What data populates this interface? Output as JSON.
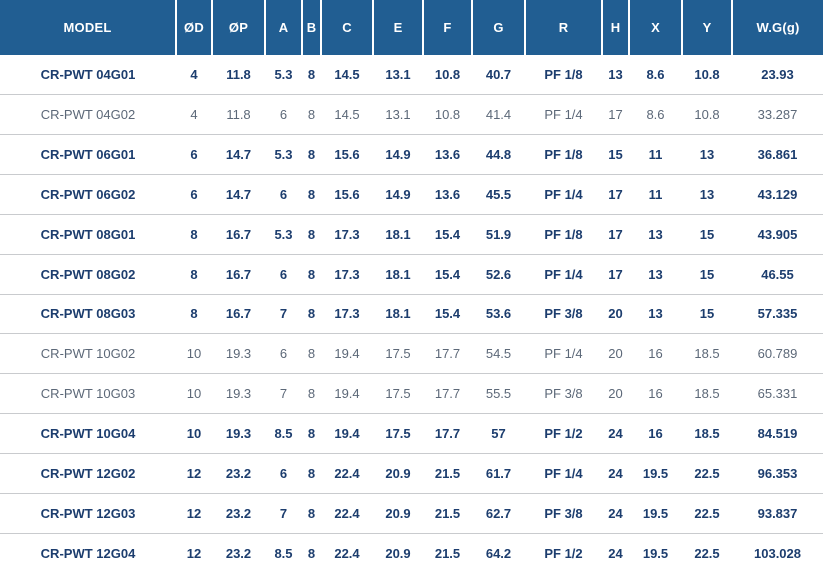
{
  "colors": {
    "header_bg": "#215e92",
    "header_text": "#ffffff",
    "row_emphasis_text": "#1c3d6e",
    "row_normal_text": "#5c6878",
    "row_border": "#c9cbce",
    "row_bg": "#ffffff"
  },
  "chart_data": {
    "type": "table",
    "title": "",
    "columns": [
      "MODEL",
      "ØD",
      "ØP",
      "A",
      "B",
      "C",
      "E",
      "F",
      "G",
      "R",
      "H",
      "X",
      "Y",
      "W.G(g)"
    ],
    "rows": [
      {
        "emphasized": true,
        "cells": [
          "CR-PWT 04G01",
          "4",
          "11.8",
          "5.3",
          "8",
          "14.5",
          "13.1",
          "10.8",
          "40.7",
          "PF 1/8",
          "13",
          "8.6",
          "10.8",
          "23.93"
        ]
      },
      {
        "emphasized": false,
        "cells": [
          "CR-PWT 04G02",
          "4",
          "11.8",
          "6",
          "8",
          "14.5",
          "13.1",
          "10.8",
          "41.4",
          "PF 1/4",
          "17",
          "8.6",
          "10.8",
          "33.287"
        ]
      },
      {
        "emphasized": true,
        "cells": [
          "CR-PWT 06G01",
          "6",
          "14.7",
          "5.3",
          "8",
          "15.6",
          "14.9",
          "13.6",
          "44.8",
          "PF 1/8",
          "15",
          "11",
          "13",
          "36.861"
        ]
      },
      {
        "emphasized": true,
        "cells": [
          "CR-PWT 06G02",
          "6",
          "14.7",
          "6",
          "8",
          "15.6",
          "14.9",
          "13.6",
          "45.5",
          "PF 1/4",
          "17",
          "11",
          "13",
          "43.129"
        ]
      },
      {
        "emphasized": true,
        "cells": [
          "CR-PWT 08G01",
          "8",
          "16.7",
          "5.3",
          "8",
          "17.3",
          "18.1",
          "15.4",
          "51.9",
          "PF 1/8",
          "17",
          "13",
          "15",
          "43.905"
        ]
      },
      {
        "emphasized": true,
        "cells": [
          "CR-PWT 08G02",
          "8",
          "16.7",
          "6",
          "8",
          "17.3",
          "18.1",
          "15.4",
          "52.6",
          "PF 1/4",
          "17",
          "13",
          "15",
          "46.55"
        ]
      },
      {
        "emphasized": true,
        "cells": [
          "CR-PWT 08G03",
          "8",
          "16.7",
          "7",
          "8",
          "17.3",
          "18.1",
          "15.4",
          "53.6",
          "PF 3/8",
          "20",
          "13",
          "15",
          "57.335"
        ]
      },
      {
        "emphasized": false,
        "cells": [
          "CR-PWT 10G02",
          "10",
          "19.3",
          "6",
          "8",
          "19.4",
          "17.5",
          "17.7",
          "54.5",
          "PF 1/4",
          "20",
          "16",
          "18.5",
          "60.789"
        ]
      },
      {
        "emphasized": false,
        "cells": [
          "CR-PWT 10G03",
          "10",
          "19.3",
          "7",
          "8",
          "19.4",
          "17.5",
          "17.7",
          "55.5",
          "PF 3/8",
          "20",
          "16",
          "18.5",
          "65.331"
        ]
      },
      {
        "emphasized": true,
        "cells": [
          "CR-PWT 10G04",
          "10",
          "19.3",
          "8.5",
          "8",
          "19.4",
          "17.5",
          "17.7",
          "57",
          "PF 1/2",
          "24",
          "16",
          "18.5",
          "84.519"
        ]
      },
      {
        "emphasized": true,
        "cells": [
          "CR-PWT 12G02",
          "12",
          "23.2",
          "6",
          "8",
          "22.4",
          "20.9",
          "21.5",
          "61.7",
          "PF 1/4",
          "24",
          "19.5",
          "22.5",
          "96.353"
        ]
      },
      {
        "emphasized": true,
        "cells": [
          "CR-PWT 12G03",
          "12",
          "23.2",
          "7",
          "8",
          "22.4",
          "20.9",
          "21.5",
          "62.7",
          "PF 3/8",
          "24",
          "19.5",
          "22.5",
          "93.837"
        ]
      },
      {
        "emphasized": true,
        "cells": [
          "CR-PWT 12G04",
          "12",
          "23.2",
          "8.5",
          "8",
          "22.4",
          "20.9",
          "21.5",
          "64.2",
          "PF 1/2",
          "24",
          "19.5",
          "22.5",
          "103.028"
        ]
      }
    ]
  }
}
